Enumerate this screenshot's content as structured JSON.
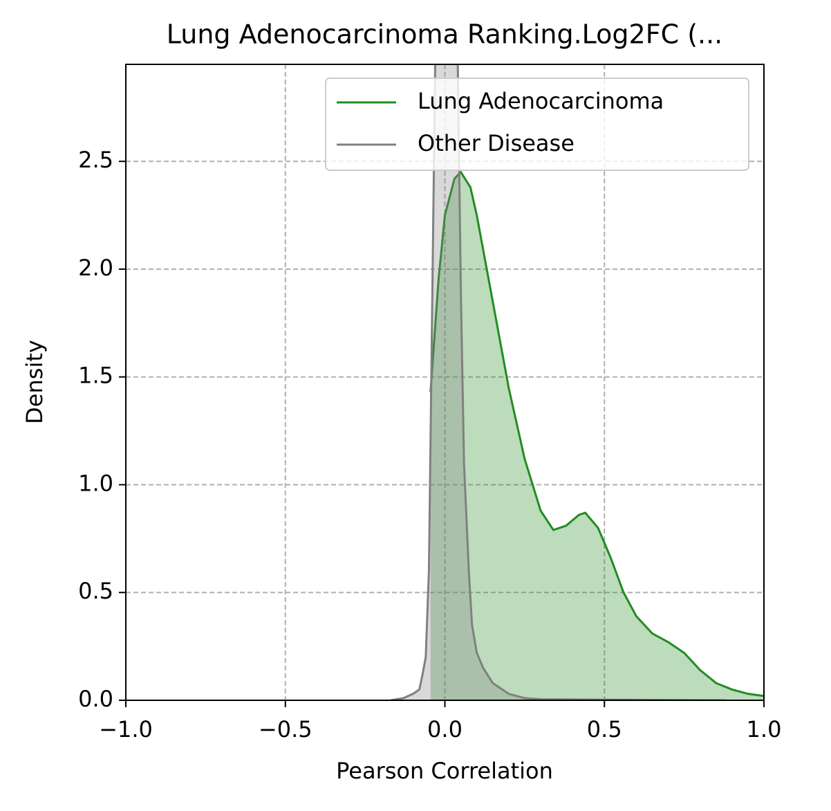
{
  "chart_data": {
    "type": "line",
    "title": "Lung Adenocarcinoma Ranking.Log2FC (...",
    "x_label": "Pearson Correlation",
    "y_label": "Density",
    "xlim": [
      -1,
      1
    ],
    "ylim": [
      0,
      2.95
    ],
    "xticks": [
      {
        "value": -1,
        "label": "−1.0"
      },
      {
        "value": -0.5,
        "label": "−0.5"
      },
      {
        "value": 0,
        "label": "0.0"
      },
      {
        "value": 0.5,
        "label": "0.5"
      },
      {
        "value": 1,
        "label": "1.0"
      }
    ],
    "yticks": [
      {
        "value": 0,
        "label": "0.0"
      },
      {
        "value": 0.5,
        "label": "0.5"
      },
      {
        "value": 1,
        "label": "1.0"
      },
      {
        "value": 1.5,
        "label": "1.5"
      },
      {
        "value": 2,
        "label": "2.0"
      },
      {
        "value": 2.5,
        "label": "2.5"
      }
    ],
    "grid": true,
    "legend": "upper right",
    "fill": true,
    "series": [
      {
        "name": "Lung Adenocarcinoma",
        "color": "#228b22",
        "x": [
          -0.045,
          -0.02,
          0.0,
          0.03,
          0.05,
          0.08,
          0.1,
          0.15,
          0.2,
          0.25,
          0.3,
          0.34,
          0.38,
          0.42,
          0.44,
          0.48,
          0.52,
          0.56,
          0.6,
          0.65,
          0.7,
          0.75,
          0.8,
          0.85,
          0.9,
          0.95,
          1.0
        ],
        "values": [
          1.43,
          1.95,
          2.25,
          2.42,
          2.45,
          2.38,
          2.25,
          1.85,
          1.45,
          1.12,
          0.88,
          0.79,
          0.81,
          0.86,
          0.87,
          0.8,
          0.66,
          0.5,
          0.39,
          0.31,
          0.27,
          0.22,
          0.14,
          0.08,
          0.05,
          0.03,
          0.02
        ]
      },
      {
        "name": "Other Disease",
        "color": "#808080",
        "x": [
          -0.17,
          -0.13,
          -0.1,
          -0.08,
          -0.07,
          -0.06,
          -0.05,
          -0.04,
          -0.03,
          -0.01,
          0.02,
          0.04,
          0.05,
          0.06,
          0.075,
          0.085,
          0.1,
          0.12,
          0.15,
          0.2,
          0.25,
          0.3,
          0.5,
          0.88
        ],
        "values": [
          0,
          0.01,
          0.03,
          0.05,
          0.12,
          0.2,
          0.6,
          1.8,
          3.0,
          4.0,
          4.0,
          3.0,
          1.9,
          1.1,
          0.6,
          0.35,
          0.22,
          0.15,
          0.08,
          0.03,
          0.01,
          0.005,
          0.003,
          0
        ]
      }
    ]
  }
}
